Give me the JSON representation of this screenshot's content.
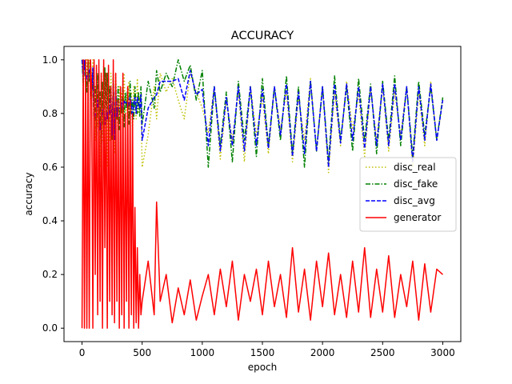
{
  "chart_data": {
    "type": "line",
    "title": "ACCURACY",
    "xlabel": "epoch",
    "ylabel": "accuracy",
    "xlim": [
      -150,
      3150
    ],
    "ylim": [
      -0.05,
      1.05
    ],
    "x_ticks": [
      0,
      500,
      1000,
      1500,
      2000,
      2500,
      3000
    ],
    "y_ticks": [
      0.0,
      0.2,
      0.4,
      0.6,
      0.8,
      1.0
    ],
    "x_tick_labels": [
      "0",
      "500",
      "1000",
      "1500",
      "2000",
      "2500",
      "3000"
    ],
    "y_tick_labels": [
      "0.0",
      "0.2",
      "0.4",
      "0.6",
      "0.8",
      "1.0"
    ],
    "grid": false,
    "legend_position": "center-right",
    "x": [
      0,
      10,
      20,
      30,
      40,
      50,
      60,
      70,
      80,
      90,
      100,
      110,
      120,
      130,
      140,
      150,
      160,
      170,
      180,
      190,
      200,
      210,
      220,
      230,
      240,
      250,
      260,
      270,
      280,
      290,
      300,
      310,
      320,
      330,
      340,
      350,
      360,
      370,
      380,
      390,
      400,
      410,
      420,
      430,
      440,
      450,
      460,
      470,
      480,
      490,
      500,
      550,
      600,
      620,
      650,
      700,
      750,
      800,
      850,
      900,
      950,
      1000,
      1050,
      1100,
      1150,
      1200,
      1250,
      1300,
      1350,
      1400,
      1450,
      1500,
      1550,
      1600,
      1650,
      1700,
      1750,
      1800,
      1850,
      1900,
      1950,
      2000,
      2050,
      2100,
      2150,
      2200,
      2250,
      2300,
      2350,
      2400,
      2450,
      2500,
      2550,
      2600,
      2650,
      2700,
      2750,
      2800,
      2850,
      2900,
      2950,
      3000
    ],
    "series": [
      {
        "name": "disc_real",
        "color": "#bfbf00",
        "style": "dotted",
        "values": [
          1.0,
          0.95,
          1.0,
          0.9,
          1.0,
          0.85,
          1.0,
          0.95,
          0.9,
          1.0,
          0.85,
          0.7,
          0.95,
          0.75,
          0.9,
          0.6,
          0.95,
          0.7,
          0.98,
          0.55,
          0.92,
          0.6,
          0.97,
          0.7,
          0.95,
          0.75,
          0.9,
          0.65,
          0.95,
          0.8,
          0.72,
          0.9,
          0.78,
          0.88,
          0.7,
          0.95,
          0.8,
          0.86,
          0.75,
          0.92,
          0.8,
          0.88,
          0.72,
          0.9,
          0.82,
          0.78,
          0.93,
          0.8,
          0.86,
          0.84,
          0.6,
          0.72,
          0.9,
          0.78,
          0.95,
          0.88,
          0.93,
          0.85,
          0.78,
          0.95,
          0.88,
          0.82,
          0.73,
          0.9,
          0.63,
          0.85,
          0.7,
          0.88,
          0.62,
          0.9,
          0.72,
          0.86,
          0.65,
          0.9,
          0.74,
          0.88,
          0.62,
          0.86,
          0.7,
          0.93,
          0.66,
          0.9,
          0.58,
          0.88,
          0.68,
          0.92,
          0.74,
          0.87,
          0.64,
          0.89,
          0.7,
          0.9,
          0.66,
          0.88,
          0.72,
          0.9,
          0.6,
          0.88,
          0.68,
          0.92,
          0.7,
          0.85
        ]
      },
      {
        "name": "disc_fake",
        "color": "#008000",
        "style": "dashdot",
        "values": [
          1.0,
          0.9,
          1.0,
          0.95,
          0.88,
          1.0,
          0.92,
          1.0,
          0.85,
          0.95,
          0.72,
          0.9,
          0.65,
          0.95,
          0.7,
          0.88,
          0.6,
          0.92,
          0.66,
          0.97,
          0.72,
          0.95,
          0.68,
          0.9,
          0.8,
          0.7,
          0.95,
          0.72,
          0.88,
          0.78,
          0.9,
          0.74,
          0.86,
          0.8,
          0.92,
          0.75,
          0.88,
          0.82,
          0.9,
          0.76,
          0.92,
          0.8,
          0.85,
          0.78,
          0.9,
          0.82,
          0.8,
          0.88,
          0.79,
          0.9,
          0.76,
          0.92,
          0.82,
          0.96,
          0.88,
          0.95,
          0.9,
          1.0,
          0.92,
          0.98,
          0.85,
          0.96,
          0.6,
          0.9,
          0.68,
          0.88,
          0.62,
          0.92,
          0.7,
          0.9,
          0.64,
          0.93,
          0.68,
          0.9,
          0.7,
          0.94,
          0.65,
          0.9,
          0.6,
          0.92,
          0.66,
          0.9,
          0.62,
          0.94,
          0.7,
          0.9,
          0.66,
          0.93,
          0.7,
          0.91,
          0.65,
          0.92,
          0.7,
          0.94,
          0.68,
          0.9,
          0.64,
          0.92,
          0.72,
          0.9,
          0.7,
          0.86
        ]
      },
      {
        "name": "disc_avg",
        "color": "#0000ff",
        "style": "dashed",
        "values": [
          1.0,
          0.93,
          1.0,
          0.92,
          0.94,
          0.92,
          0.96,
          0.97,
          0.88,
          0.97,
          0.78,
          0.8,
          0.8,
          0.85,
          0.8,
          0.74,
          0.78,
          0.81,
          0.82,
          0.76,
          0.82,
          0.78,
          0.82,
          0.8,
          0.88,
          0.72,
          0.92,
          0.7,
          0.9,
          0.79,
          0.82,
          0.82,
          0.82,
          0.84,
          0.81,
          0.85,
          0.84,
          0.84,
          0.82,
          0.84,
          0.86,
          0.84,
          0.78,
          0.84,
          0.86,
          0.8,
          0.86,
          0.84,
          0.82,
          0.87,
          0.7,
          0.82,
          0.86,
          0.87,
          0.92,
          0.92,
          0.92,
          0.93,
          0.85,
          0.96,
          0.87,
          0.89,
          0.68,
          0.9,
          0.66,
          0.86,
          0.68,
          0.9,
          0.66,
          0.9,
          0.68,
          0.89,
          0.67,
          0.9,
          0.72,
          0.91,
          0.64,
          0.88,
          0.65,
          0.92,
          0.66,
          0.9,
          0.6,
          0.91,
          0.69,
          0.91,
          0.7,
          0.9,
          0.67,
          0.9,
          0.68,
          0.91,
          0.68,
          0.91,
          0.7,
          0.9,
          0.62,
          0.9,
          0.7,
          0.91,
          0.7,
          0.85
        ]
      },
      {
        "name": "generator",
        "color": "#ff0000",
        "style": "solid",
        "values": [
          0.0,
          1.0,
          0.0,
          1.0,
          0.0,
          1.0,
          0.0,
          1.0,
          0.9,
          0.0,
          1.0,
          0.2,
          0.98,
          0.05,
          1.0,
          0.1,
          0.95,
          0.0,
          1.0,
          0.3,
          0.95,
          0.0,
          0.98,
          0.1,
          0.9,
          0.05,
          1.0,
          0.02,
          0.95,
          0.1,
          0.85,
          0.0,
          0.9,
          0.05,
          0.95,
          0.0,
          0.8,
          0.1,
          0.9,
          0.0,
          0.85,
          0.05,
          0.8,
          0.0,
          0.45,
          0.02,
          0.3,
          0.0,
          0.2,
          0.05,
          0.1,
          0.25,
          0.05,
          0.47,
          0.1,
          0.2,
          0.02,
          0.15,
          0.05,
          0.18,
          0.03,
          0.12,
          0.2,
          0.05,
          0.22,
          0.08,
          0.25,
          0.03,
          0.2,
          0.1,
          0.22,
          0.05,
          0.25,
          0.08,
          0.2,
          0.04,
          0.3,
          0.06,
          0.22,
          0.03,
          0.25,
          0.08,
          0.28,
          0.05,
          0.2,
          0.04,
          0.25,
          0.06,
          0.3,
          0.04,
          0.22,
          0.06,
          0.27,
          0.04,
          0.2,
          0.08,
          0.25,
          0.03,
          0.24,
          0.06,
          0.22,
          0.2
        ]
      }
    ]
  }
}
